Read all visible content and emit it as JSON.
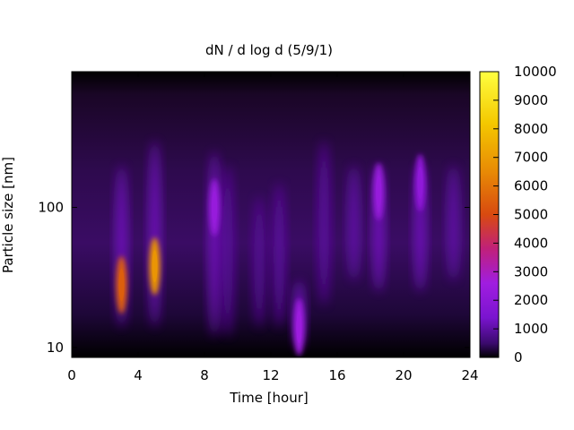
{
  "chart_data": {
    "type": "heatmap",
    "title": "dN / d log d (5/9/1)",
    "xlabel": "Time [hour]",
    "ylabel": "Particle size [nm]",
    "x_range": [
      0,
      24
    ],
    "x_ticks": [
      0,
      4,
      8,
      12,
      16,
      20,
      24
    ],
    "y_scale": "log",
    "y_range": [
      8.5,
      930
    ],
    "y_ticks": [
      10,
      100
    ],
    "colorbar": {
      "range": [
        0,
        10000
      ],
      "ticks": [
        0,
        1000,
        2000,
        3000,
        4000,
        5000,
        6000,
        7000,
        8000,
        9000,
        10000
      ],
      "colors": [
        "#000000",
        "#3b0a6e",
        "#7a14d0",
        "#a01de0",
        "#c0207a",
        "#d84a10",
        "#e88a05",
        "#f4c800",
        "#ffff40"
      ],
      "color_stops": [
        0,
        0.05,
        0.14,
        0.26,
        0.38,
        0.5,
        0.65,
        0.82,
        1.0
      ]
    },
    "features": [
      {
        "time_h": 3.0,
        "size_nm": 28,
        "peak_dN_dlogd": 5500
      },
      {
        "time_h": 5.0,
        "size_nm": 38,
        "peak_dN_dlogd": 6800
      },
      {
        "time_h": 8.6,
        "size_nm": 100,
        "peak_dN_dlogd": 2300
      },
      {
        "time_h": 13.7,
        "size_nm": 14,
        "peak_dN_dlogd": 2500
      },
      {
        "time_h": 18.5,
        "size_nm": 130,
        "peak_dN_dlogd": 2300
      },
      {
        "time_h": 21.0,
        "size_nm": 150,
        "peak_dN_dlogd": 2100
      }
    ],
    "grid": false
  }
}
